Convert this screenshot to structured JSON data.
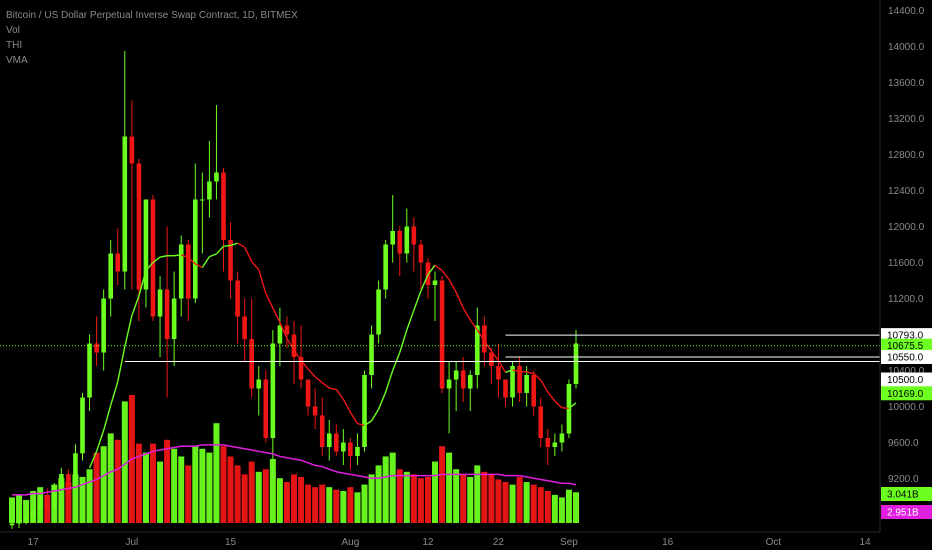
{
  "header": {
    "title": "Bitcoin / US Dollar Perpetual Inverse Swap Contract, 1D, BITMEX",
    "indicators": [
      "Vol",
      "THI",
      "VMA"
    ]
  },
  "chart_data": {
    "type": "candlestick",
    "title": "Bitcoin / US Dollar Perpetual Inverse Swap Contract, 1D, BITMEX",
    "y_ticks": [
      14400,
      14000,
      13600,
      13200,
      12800,
      12400,
      12000,
      11600,
      11200,
      10800,
      10400,
      10000,
      9600,
      9200,
      8800
    ],
    "y_tick_labels": [
      "14400.0",
      "14000.0",
      "13600.0",
      "13200.0",
      "12800.0",
      "12400.0",
      "12000.0",
      "11600.0",
      "11200.0",
      "10800.0",
      "10400.0",
      "10000.0",
      "9600.0",
      "9200.0",
      "8800.0"
    ],
    "ylim": [
      8650,
      14450
    ],
    "x_tick_labels": [
      {
        "label": "17",
        "index": 3
      },
      {
        "label": "Jul",
        "index": 17
      },
      {
        "label": "15",
        "index": 31
      },
      {
        "label": "Aug",
        "index": 48
      },
      {
        "label": "12",
        "index": 59
      },
      {
        "label": "22",
        "index": 69
      },
      {
        "label": "Sep",
        "index": 79
      },
      {
        "label": "16",
        "index": 93
      },
      {
        "label": "Oct",
        "index": 108
      },
      {
        "label": "14",
        "index": 121
      }
    ],
    "candles": [
      [
        8680,
        8750,
        8640,
        8700
      ],
      [
        8700,
        8780,
        8650,
        8740
      ],
      [
        8740,
        8820,
        8690,
        8760
      ],
      [
        8760,
        8880,
        8730,
        8850
      ],
      [
        8850,
        8990,
        8800,
        8930
      ],
      [
        8930,
        9090,
        8850,
        8880
      ],
      [
        8880,
        9150,
        8840,
        9100
      ],
      [
        9100,
        9320,
        9050,
        9250
      ],
      [
        9250,
        9300,
        9080,
        9120
      ],
      [
        9120,
        9580,
        9100,
        9480
      ],
      [
        9480,
        10150,
        9400,
        10100
      ],
      [
        10100,
        10800,
        9950,
        10700
      ],
      [
        10700,
        11000,
        10450,
        10600
      ],
      [
        10600,
        11300,
        10400,
        11200
      ],
      [
        11200,
        11850,
        11000,
        11700
      ],
      [
        11700,
        11980,
        11350,
        11500
      ],
      [
        11500,
        13950,
        11300,
        13000
      ],
      [
        13000,
        13400,
        11300,
        12700
      ],
      [
        12700,
        12750,
        10950,
        11300
      ],
      [
        11300,
        12300,
        11100,
        12300
      ],
      [
        12300,
        12350,
        10950,
        11000
      ],
      [
        11000,
        11450,
        10550,
        11300
      ],
      [
        11300,
        12000,
        10100,
        10750
      ],
      [
        10750,
        11500,
        10450,
        11200
      ],
      [
        11200,
        11900,
        11000,
        11800
      ],
      [
        11800,
        11850,
        10950,
        11200
      ],
      [
        11200,
        12700,
        11150,
        12300
      ],
      [
        12300,
        12600,
        11700,
        12300
      ],
      [
        12300,
        12950,
        12100,
        12500
      ],
      [
        12500,
        13350,
        12300,
        12600
      ],
      [
        12600,
        12650,
        11500,
        11850
      ],
      [
        11850,
        12050,
        11200,
        11400
      ],
      [
        11400,
        11500,
        10700,
        11000
      ],
      [
        11000,
        11200,
        10500,
        10750
      ],
      [
        10750,
        11200,
        10100,
        10200
      ],
      [
        10200,
        10450,
        9900,
        10300
      ],
      [
        10300,
        10400,
        9600,
        9650
      ],
      [
        9650,
        10850,
        9200,
        10700
      ],
      [
        10700,
        11100,
        10450,
        10900
      ],
      [
        10900,
        11000,
        10650,
        10800
      ],
      [
        10800,
        10950,
        10250,
        10550
      ],
      [
        10550,
        10900,
        10200,
        10300
      ],
      [
        10300,
        10300,
        9900,
        10000
      ],
      [
        10000,
        10200,
        9750,
        9900
      ],
      [
        9900,
        10100,
        9450,
        9550
      ],
      [
        9550,
        9850,
        9400,
        9700
      ],
      [
        9700,
        9800,
        9450,
        9500
      ],
      [
        9500,
        9750,
        9350,
        9600
      ],
      [
        9600,
        9650,
        9300,
        9450
      ],
      [
        9450,
        9700,
        9350,
        9550
      ],
      [
        9550,
        10400,
        9500,
        10350
      ],
      [
        10350,
        10900,
        10200,
        10800
      ],
      [
        10800,
        11400,
        10700,
        11300
      ],
      [
        11300,
        11850,
        11200,
        11800
      ],
      [
        11800,
        12350,
        11600,
        11950
      ],
      [
        11950,
        12000,
        11450,
        11700
      ],
      [
        11700,
        12200,
        11600,
        12000
      ],
      [
        12000,
        12100,
        11500,
        11800
      ],
      [
        11800,
        11850,
        11300,
        11600
      ],
      [
        11600,
        11650,
        11200,
        11350
      ],
      [
        11350,
        11500,
        10950,
        11400
      ],
      [
        11400,
        11450,
        10150,
        10200
      ],
      [
        10200,
        10500,
        9700,
        10300
      ],
      [
        10300,
        10500,
        9950,
        10400
      ],
      [
        10400,
        10550,
        10050,
        10200
      ],
      [
        10200,
        10400,
        9950,
        10350
      ],
      [
        10350,
        11100,
        10200,
        10900
      ],
      [
        10900,
        11000,
        10450,
        10600
      ],
      [
        10600,
        10650,
        10250,
        10450
      ],
      [
        10450,
        10700,
        10100,
        10300
      ],
      [
        10300,
        10300,
        10000,
        10100
      ],
      [
        10100,
        10500,
        10000,
        10450
      ],
      [
        10450,
        10550,
        10050,
        10150
      ],
      [
        10150,
        10450,
        10000,
        10350
      ],
      [
        10350,
        10400,
        9900,
        10000
      ],
      [
        10000,
        10100,
        9550,
        9650
      ],
      [
        9650,
        9750,
        9350,
        9550
      ],
      [
        9550,
        9700,
        9450,
        9600
      ],
      [
        9600,
        9800,
        9500,
        9700
      ],
      [
        9700,
        10300,
        9650,
        10250
      ],
      [
        10250,
        10850,
        10200,
        10700
      ]
    ],
    "volume_max_units": "1.0",
    "volumes": [
      0.2,
      0.22,
      0.18,
      0.25,
      0.28,
      0.22,
      0.3,
      0.35,
      0.32,
      0.38,
      0.36,
      0.42,
      0.55,
      0.6,
      0.7,
      0.65,
      0.95,
      1.0,
      0.62,
      0.55,
      0.62,
      0.48,
      0.65,
      0.58,
      0.52,
      0.45,
      0.6,
      0.58,
      0.55,
      0.78,
      0.6,
      0.52,
      0.45,
      0.38,
      0.48,
      0.4,
      0.42,
      0.5,
      0.35,
      0.32,
      0.38,
      0.36,
      0.3,
      0.28,
      0.3,
      0.28,
      0.26,
      0.25,
      0.28,
      0.24,
      0.3,
      0.38,
      0.45,
      0.52,
      0.55,
      0.42,
      0.4,
      0.38,
      0.35,
      0.36,
      0.48,
      0.6,
      0.55,
      0.42,
      0.38,
      0.36,
      0.45,
      0.4,
      0.38,
      0.34,
      0.32,
      0.3,
      0.36,
      0.32,
      0.3,
      0.28,
      0.25,
      0.22,
      0.2,
      0.26,
      0.24
    ],
    "vma": [
      0.22,
      0.22,
      0.22,
      0.23,
      0.23,
      0.24,
      0.25,
      0.26,
      0.27,
      0.28,
      0.3,
      0.32,
      0.34,
      0.37,
      0.4,
      0.42,
      0.46,
      0.5,
      0.52,
      0.54,
      0.56,
      0.57,
      0.58,
      0.59,
      0.6,
      0.6,
      0.6,
      0.61,
      0.61,
      0.61,
      0.61,
      0.6,
      0.59,
      0.58,
      0.57,
      0.56,
      0.55,
      0.54,
      0.52,
      0.51,
      0.5,
      0.49,
      0.47,
      0.45,
      0.44,
      0.42,
      0.4,
      0.39,
      0.38,
      0.37,
      0.36,
      0.35,
      0.35,
      0.36,
      0.37,
      0.37,
      0.37,
      0.37,
      0.37,
      0.37,
      0.37,
      0.38,
      0.38,
      0.38,
      0.38,
      0.38,
      0.38,
      0.38,
      0.38,
      0.38,
      0.37,
      0.37,
      0.37,
      0.36,
      0.35,
      0.34,
      0.33,
      0.32,
      0.31,
      0.31,
      0.3
    ],
    "horizontal_levels": [
      10793.0,
      10550.0,
      10500.0
    ],
    "current_price": 10675.5,
    "price_tags": [
      {
        "label": "10793.0",
        "value": 10793.0,
        "color": "#ffffff",
        "text_color": "#000000"
      },
      {
        "label": "10675.5",
        "value": 10675.5,
        "color": "#6cff1f",
        "text_color": "#000000"
      },
      {
        "label": "10550.0",
        "value": 10550.0,
        "color": "#ffffff",
        "text_color": "#000000"
      },
      {
        "label": "10500.0",
        "value": 10500.0,
        "color": "#ffffff",
        "text_color": "#000000"
      },
      {
        "label": "10169.0",
        "value": 10169.0,
        "color": "#6cff1f",
        "text_color": "#000000"
      }
    ],
    "volume_tags": [
      {
        "label": "3.041B",
        "color": "#6cff1f",
        "text_color": "#000000"
      },
      {
        "label": "2.951B",
        "color": "#e01ee0",
        "text_color": "#ffffff"
      }
    ],
    "colors": {
      "up": "#6cff1f",
      "down": "#f01616",
      "vma": "#e01ee0",
      "background": "#000000"
    }
  }
}
